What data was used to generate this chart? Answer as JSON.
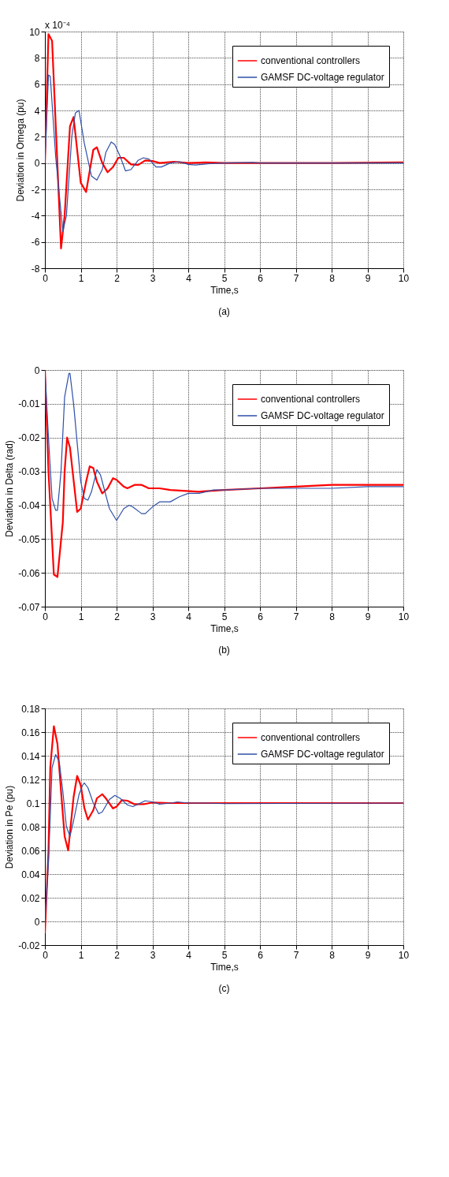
{
  "chart_data": [
    {
      "type": "line",
      "xlabel": "Time,s",
      "ylabel": "Deviation in Omega (pu)",
      "annotations": [
        "x 10⁻⁴",
        "(a)"
      ],
      "xlim": [
        0,
        10
      ],
      "xticks": [
        0,
        1,
        2,
        3,
        4,
        5,
        6,
        7,
        8,
        9,
        10
      ],
      "ylim": [
        -8,
        10
      ],
      "yticks": [
        -8,
        -6,
        -4,
        -2,
        0,
        2,
        4,
        6,
        8,
        10
      ],
      "grid": true,
      "legend": "top right",
      "line_style": "solid",
      "series": [
        {
          "name": "conventional controllers",
          "color": "#ff0000",
          "x": [
            0,
            0.1,
            0.2,
            0.3,
            0.45,
            0.55,
            0.7,
            0.8,
            1.0,
            1.15,
            1.35,
            1.45,
            1.6,
            1.75,
            1.9,
            2.05,
            2.2,
            2.4,
            2.6,
            2.8,
            3.0,
            3.2,
            3.6,
            4,
            4.5,
            5,
            6,
            8,
            10
          ],
          "values": [
            0,
            9.8,
            9.3,
            3,
            -6.5,
            -4,
            2.8,
            3.5,
            -1.5,
            -2.2,
            1.0,
            1.2,
            0,
            -0.7,
            -0.3,
            0.4,
            0.4,
            -0.1,
            -0.15,
            0.2,
            0.15,
            0,
            0.1,
            0,
            0.05,
            0,
            0,
            0,
            0.05
          ]
        },
        {
          "name": "GAMSF DC-voltage regulator",
          "color": "#2e4fa8",
          "x": [
            0,
            0.1,
            0.15,
            0.3,
            0.5,
            0.6,
            0.75,
            0.85,
            0.95,
            1.1,
            1.3,
            1.45,
            1.6,
            1.7,
            1.85,
            1.95,
            2.1,
            2.25,
            2.4,
            2.6,
            2.75,
            2.9,
            3.1,
            3.25,
            3.5,
            3.75,
            4,
            4.2,
            4.6,
            5,
            5.8,
            6,
            10
          ],
          "values": [
            0,
            6.7,
            6.6,
            0.5,
            -5.2,
            -4,
            2,
            3.8,
            4,
            1.5,
            -1,
            -1.3,
            -0.5,
            0.8,
            1.6,
            1.4,
            0.5,
            -0.6,
            -0.5,
            0.2,
            0.4,
            0.3,
            -0.3,
            -0.3,
            0,
            0.1,
            -0.1,
            -0.15,
            -0.05,
            0,
            0.05,
            0,
            0
          ]
        }
      ]
    },
    {
      "type": "line",
      "xlabel": "Time,s",
      "ylabel": "Deviation in Delta (rad)",
      "annotations": [
        "(b)"
      ],
      "xlim": [
        0,
        10
      ],
      "xticks": [
        0,
        1,
        2,
        3,
        4,
        5,
        6,
        7,
        8,
        9,
        10
      ],
      "ylim": [
        -0.07,
        0
      ],
      "yticks": [
        -0.07,
        -0.06,
        -0.05,
        -0.04,
        -0.03,
        -0.02,
        -0.01,
        0
      ],
      "grid": true,
      "legend": "top right",
      "line_style": "solid",
      "series": [
        {
          "name": "conventional controllers",
          "color": "#ff0000",
          "x": [
            0,
            0.1,
            0.25,
            0.35,
            0.5,
            0.55,
            0.62,
            0.7,
            0.9,
            1.0,
            1.15,
            1.25,
            1.35,
            1.45,
            1.6,
            1.75,
            1.9,
            2.0,
            2.2,
            2.3,
            2.5,
            2.7,
            2.9,
            3.2,
            3.5,
            4.3,
            5,
            6,
            7,
            8,
            10
          ],
          "values": [
            0,
            -0.03,
            -0.0605,
            -0.0612,
            -0.045,
            -0.03,
            -0.02,
            -0.023,
            -0.042,
            -0.041,
            -0.033,
            -0.0285,
            -0.029,
            -0.033,
            -0.0365,
            -0.035,
            -0.032,
            -0.0325,
            -0.0345,
            -0.035,
            -0.034,
            -0.034,
            -0.035,
            -0.035,
            -0.0355,
            -0.036,
            -0.0355,
            -0.035,
            -0.0345,
            -0.034,
            -0.034
          ]
        },
        {
          "name": "GAMSF DC-voltage regulator",
          "color": "#2e4fa8",
          "x": [
            0,
            0.1,
            0.2,
            0.3,
            0.35,
            0.45,
            0.55,
            0.67,
            0.7,
            0.8,
            1.0,
            1.1,
            1.2,
            1.3,
            1.45,
            1.55,
            1.65,
            1.8,
            2.0,
            2.2,
            2.35,
            2.45,
            2.7,
            2.8,
            3.0,
            3.2,
            3.5,
            3.75,
            4,
            4.3,
            4.7,
            5,
            6,
            7,
            8,
            9,
            10
          ],
          "values": [
            0,
            -0.02,
            -0.038,
            -0.0415,
            -0.0415,
            -0.03,
            -0.008,
            -0.001,
            -0.001,
            -0.01,
            -0.033,
            -0.038,
            -0.0385,
            -0.036,
            -0.0295,
            -0.031,
            -0.035,
            -0.041,
            -0.0445,
            -0.041,
            -0.04,
            -0.0405,
            -0.0425,
            -0.0425,
            -0.0405,
            -0.039,
            -0.039,
            -0.0375,
            -0.0365,
            -0.0365,
            -0.0355,
            -0.0355,
            -0.035,
            -0.035,
            -0.035,
            -0.0345,
            -0.0345
          ]
        }
      ]
    },
    {
      "type": "line",
      "xlabel": "Time,s",
      "ylabel": "Deviation in Pe (pu)",
      "annotations": [
        "(c)"
      ],
      "xlim": [
        0,
        10
      ],
      "xticks": [
        0,
        1,
        2,
        3,
        4,
        5,
        6,
        7,
        8,
        9,
        10
      ],
      "ylim": [
        -0.02,
        0.18
      ],
      "yticks": [
        -0.02,
        0,
        0.02,
        0.04,
        0.06,
        0.08,
        0.1,
        0.12,
        0.14,
        0.16,
        0.18
      ],
      "grid": true,
      "legend": "top right",
      "line_style": "solid",
      "series": [
        {
          "name": "conventional controllers",
          "color": "#ff0000",
          "x": [
            0,
            0.1,
            0.15,
            0.25,
            0.35,
            0.45,
            0.55,
            0.65,
            0.8,
            0.9,
            1.0,
            1.1,
            1.2,
            1.35,
            1.45,
            1.6,
            1.7,
            1.9,
            2.0,
            2.15,
            2.3,
            2.5,
            2.75,
            3,
            3.5,
            4,
            10
          ],
          "values": [
            -0.01,
            0.06,
            0.13,
            0.165,
            0.15,
            0.11,
            0.072,
            0.06,
            0.105,
            0.123,
            0.115,
            0.096,
            0.086,
            0.094,
            0.104,
            0.1075,
            0.104,
            0.0955,
            0.097,
            0.1025,
            0.102,
            0.099,
            0.099,
            0.1005,
            0.1,
            0.1,
            0.1
          ]
        },
        {
          "name": "GAMSF DC-voltage regulator",
          "color": "#2e4fa8",
          "x": [
            0,
            0.1,
            0.2,
            0.3,
            0.4,
            0.5,
            0.6,
            0.7,
            0.8,
            0.95,
            1.05,
            1.1,
            1.2,
            1.35,
            1.5,
            1.6,
            1.8,
            1.95,
            2.1,
            2.3,
            2.45,
            2.6,
            2.8,
            3,
            3.2,
            3.5,
            3.7,
            4,
            4.5,
            5,
            10
          ],
          "values": [
            0,
            0.05,
            0.13,
            0.141,
            0.135,
            0.11,
            0.08,
            0.072,
            0.085,
            0.107,
            0.115,
            0.117,
            0.113,
            0.1,
            0.091,
            0.0925,
            0.103,
            0.1065,
            0.104,
            0.0985,
            0.097,
            0.099,
            0.102,
            0.101,
            0.099,
            0.1,
            0.101,
            0.1,
            0.1,
            0.0995,
            0.1
          ]
        }
      ]
    }
  ]
}
